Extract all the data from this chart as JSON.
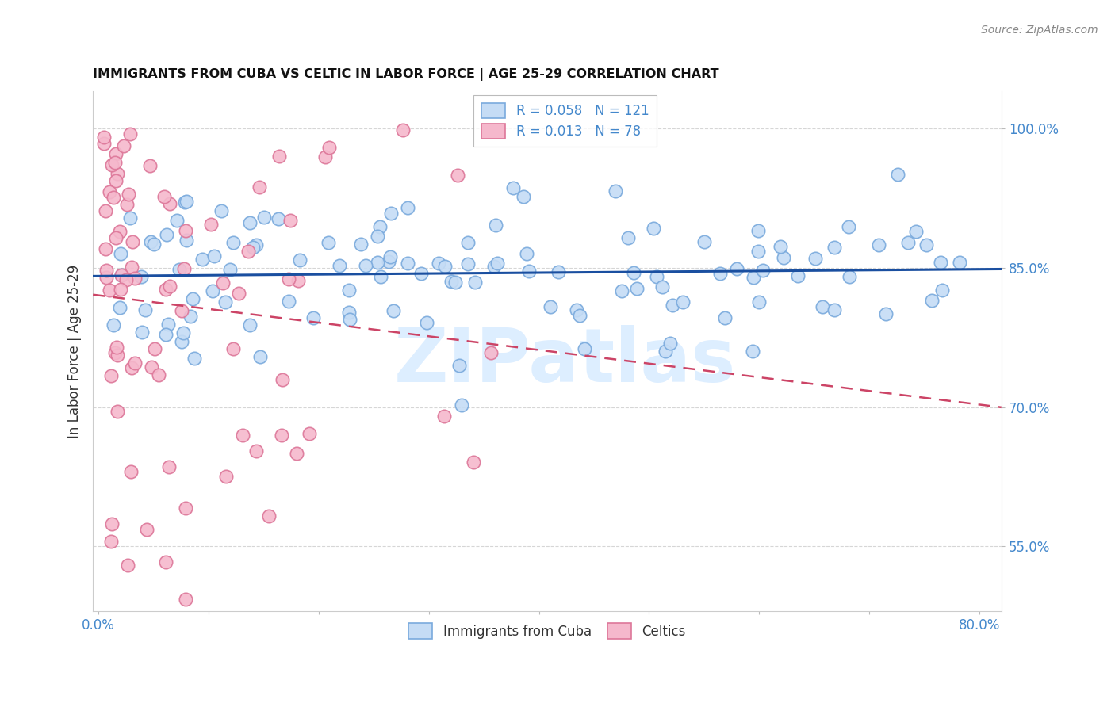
{
  "title": "IMMIGRANTS FROM CUBA VS CELTIC IN LABOR FORCE | AGE 25-29 CORRELATION CHART",
  "source": "Source: ZipAtlas.com",
  "ylabel": "In Labor Force | Age 25-29",
  "xlim": [
    -0.005,
    0.82
  ],
  "ylim": [
    0.48,
    1.04
  ],
  "ytick_vals": [
    0.55,
    0.7,
    0.85,
    1.0
  ],
  "ytick_labels": [
    "55.0%",
    "70.0%",
    "85.0%",
    "100.0%"
  ],
  "xtick_vals": [
    0.0,
    0.1,
    0.2,
    0.3,
    0.4,
    0.5,
    0.6,
    0.7,
    0.8
  ],
  "xtick_labels": [
    "0.0%",
    "",
    "",
    "",
    "",
    "",
    "",
    "",
    "80.0%"
  ],
  "legend_line1": "R = 0.058   N = 121",
  "legend_line2": "R = 0.013   N = 78",
  "color_blue_fill": "#c5dcf5",
  "color_blue_edge": "#7aaadd",
  "color_pink_fill": "#f5b8cc",
  "color_pink_edge": "#dd7799",
  "trendline_blue": "#1a4fa0",
  "trendline_pink": "#cc4466",
  "watermark_text": "ZIPatlas",
  "watermark_color": "#ddeeff",
  "grid_color": "#cccccc",
  "background": "#ffffff",
  "title_color": "#111111",
  "tick_color": "#4488cc",
  "source_color": "#888888",
  "ylabel_color": "#333333"
}
